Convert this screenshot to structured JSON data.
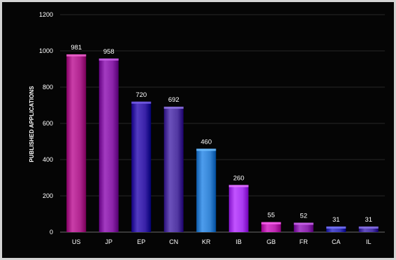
{
  "chart_data": {
    "type": "bar",
    "title": "",
    "xlabel": "",
    "ylabel": "PUBLISHED APPLICATIONS",
    "ylim": [
      0,
      1200
    ],
    "yticks": [
      0,
      200,
      400,
      600,
      800,
      1000,
      1200
    ],
    "categories": [
      "US",
      "JP",
      "EP",
      "CN",
      "KR",
      "IB",
      "GB",
      "FR",
      "CA",
      "IL"
    ],
    "values": [
      981,
      958,
      720,
      692,
      460,
      260,
      55,
      52,
      31,
      31
    ],
    "bar_colors": [
      "#b0258f",
      "#8a22a8",
      "#3a22a8",
      "#5238a2",
      "#3584d4",
      "#a93af0",
      "#c028b4",
      "#8f2ab0",
      "#3a38b8",
      "#4b36a8"
    ],
    "grid": true,
    "legend": "none",
    "background": "#050505"
  }
}
